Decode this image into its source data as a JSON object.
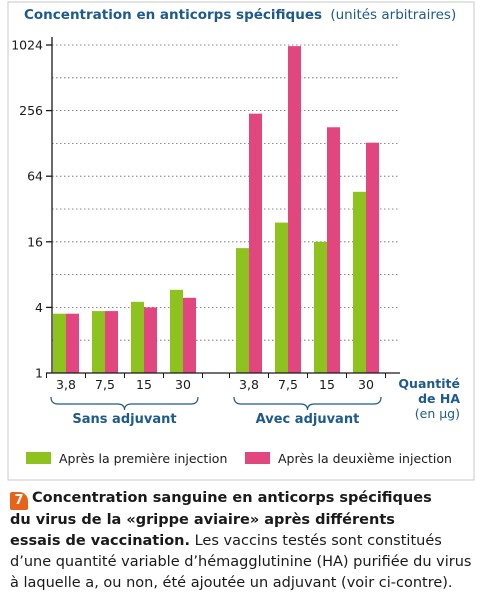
{
  "chart_data": {
    "type": "bar",
    "title": "Concentration en anticorps spécifiques",
    "title_unit": "(unités arbitraires)",
    "y_scale": "log2",
    "ylim": [
      1,
      1024
    ],
    "yticks": [
      1,
      4,
      16,
      64,
      256,
      1024
    ],
    "grid": true,
    "xlabel": "Quantité de HA (en µg)",
    "xlabel_lines": [
      "Quantité",
      "de HA",
      "(en µg)"
    ],
    "groups": [
      {
        "name": "Sans adjuvant",
        "categories": [
          "3,8",
          "7,5",
          "15",
          "30"
        ]
      },
      {
        "name": "Avec adjuvant",
        "categories": [
          "3,8",
          "7,5",
          "15",
          "30"
        ]
      }
    ],
    "series": [
      {
        "name": "Après la première injection",
        "color": "#8dc21f",
        "values": [
          3.5,
          3.7,
          4.5,
          5.8,
          14,
          24,
          16,
          46
        ]
      },
      {
        "name": "Après la deuxième injection",
        "color": "#e2467f",
        "values": [
          3.5,
          3.7,
          4.0,
          4.9,
          240,
          1000,
          180,
          130
        ]
      }
    ]
  },
  "caption": {
    "number": "7",
    "title_lines": [
      "Concentration sanguine en anticorps spécifiques",
      "du virus de la «grippe aviaire» après différents",
      "essais de vaccination."
    ],
    "body_first": "Les vaccins testés sont constitués",
    "body_lines": [
      "d’une quantité variable d’hémagglutinine (HA) purifiée du virus",
      "à laquelle a, ou non, été ajoutée un adjuvant (voir ci-contre)."
    ]
  },
  "colors": {
    "axis": "#1a1a1a",
    "text": "#1e5a8c",
    "grid": "#666666",
    "frame": "#bfbfbf",
    "accent": "#e8631a"
  }
}
